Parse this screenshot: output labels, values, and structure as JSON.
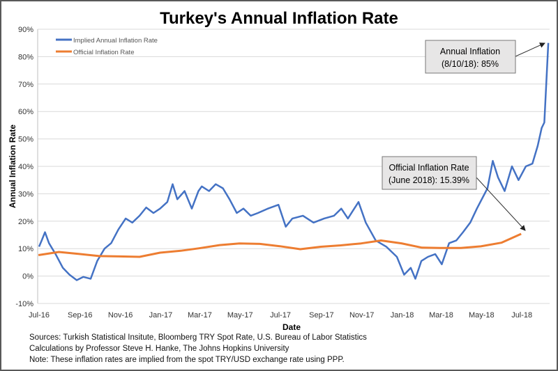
{
  "chart_data": {
    "type": "line",
    "title": "Turkey's Annual Inflation Rate",
    "xlabel": "Date",
    "ylabel": "Annual Inflation Rate",
    "ylim": [
      -10,
      90
    ],
    "xlim": [
      "2016-07-01",
      "2018-08-12"
    ],
    "yticks": [
      "-10%",
      "0%",
      "10%",
      "20%",
      "30%",
      "40%",
      "50%",
      "60%",
      "70%",
      "80%",
      "90%"
    ],
    "xticks": [
      {
        "date": "2016-07-01",
        "label": "Jul-16"
      },
      {
        "date": "2016-09-01",
        "label": "Sep-16"
      },
      {
        "date": "2016-11-01",
        "label": "Nov-16"
      },
      {
        "date": "2017-01-01",
        "label": "Jan-17"
      },
      {
        "date": "2017-03-01",
        "label": "Mar-17"
      },
      {
        "date": "2017-05-01",
        "label": "May-17"
      },
      {
        "date": "2017-07-01",
        "label": "Jul-17"
      },
      {
        "date": "2017-09-01",
        "label": "Sep-17"
      },
      {
        "date": "2017-11-01",
        "label": "Nov-17"
      },
      {
        "date": "2018-01-01",
        "label": "Jan-18"
      },
      {
        "date": "2018-03-01",
        "label": "Mar-18"
      },
      {
        "date": "2018-05-01",
        "label": "May-18"
      },
      {
        "date": "2018-07-01",
        "label": "Jul-18"
      }
    ],
    "grid": true,
    "legend_position": "top-left",
    "series": [
      {
        "name": "Implied Annual Inflation Rate",
        "color": "#4472c4",
        "points": [
          [
            "2016-07-01",
            10.7
          ],
          [
            "2016-07-05",
            13
          ],
          [
            "2016-07-10",
            16
          ],
          [
            "2016-07-16",
            12
          ],
          [
            "2016-07-26",
            8
          ],
          [
            "2016-08-06",
            3
          ],
          [
            "2016-08-16",
            0.5
          ],
          [
            "2016-08-27",
            -1.5
          ],
          [
            "2016-09-06",
            -0.3
          ],
          [
            "2016-09-17",
            -1
          ],
          [
            "2016-09-27",
            5.5
          ],
          [
            "2016-10-08",
            10
          ],
          [
            "2016-10-18",
            12
          ],
          [
            "2016-10-29",
            17
          ],
          [
            "2016-11-09",
            21
          ],
          [
            "2016-11-19",
            19.5
          ],
          [
            "2016-11-30",
            22
          ],
          [
            "2016-12-10",
            25
          ],
          [
            "2016-12-21",
            23
          ],
          [
            "2016-12-31",
            24.6
          ],
          [
            "2017-01-11",
            27
          ],
          [
            "2017-01-19",
            33.5
          ],
          [
            "2017-01-26",
            28
          ],
          [
            "2017-02-06",
            31
          ],
          [
            "2017-02-17",
            24.6
          ],
          [
            "2017-02-27",
            31
          ],
          [
            "2017-03-04",
            32.7
          ],
          [
            "2017-03-15",
            31
          ],
          [
            "2017-03-25",
            33.5
          ],
          [
            "2017-04-05",
            32
          ],
          [
            "2017-04-15",
            28
          ],
          [
            "2017-04-26",
            23
          ],
          [
            "2017-05-06",
            24.6
          ],
          [
            "2017-05-17",
            22
          ],
          [
            "2017-05-28",
            23
          ],
          [
            "2017-06-12",
            24.6
          ],
          [
            "2017-06-28",
            26
          ],
          [
            "2017-07-09",
            18
          ],
          [
            "2017-07-19",
            21
          ],
          [
            "2017-08-04",
            22
          ],
          [
            "2017-08-20",
            19.5
          ],
          [
            "2017-09-05",
            21
          ],
          [
            "2017-09-20",
            22
          ],
          [
            "2017-10-01",
            24.6
          ],
          [
            "2017-10-11",
            21
          ],
          [
            "2017-10-27",
            27
          ],
          [
            "2017-11-07",
            19.5
          ],
          [
            "2017-11-22",
            13
          ],
          [
            "2017-12-08",
            10.7
          ],
          [
            "2017-12-24",
            7
          ],
          [
            "2018-01-04",
            0.5
          ],
          [
            "2018-01-14",
            3
          ],
          [
            "2018-01-21",
            -1
          ],
          [
            "2018-01-30",
            5.5
          ],
          [
            "2018-02-09",
            7
          ],
          [
            "2018-02-20",
            8
          ],
          [
            "2018-03-02",
            4.3
          ],
          [
            "2018-03-13",
            12
          ],
          [
            "2018-03-24",
            13
          ],
          [
            "2018-04-03",
            16
          ],
          [
            "2018-04-14",
            19.5
          ],
          [
            "2018-04-24",
            24.6
          ],
          [
            "2018-05-10",
            32
          ],
          [
            "2018-05-18",
            42
          ],
          [
            "2018-05-26",
            36
          ],
          [
            "2018-06-05",
            31
          ],
          [
            "2018-06-16",
            40
          ],
          [
            "2018-06-26",
            35
          ],
          [
            "2018-07-07",
            40
          ],
          [
            "2018-07-17",
            41
          ],
          [
            "2018-07-25",
            47.5
          ],
          [
            "2018-07-31",
            54
          ],
          [
            "2018-08-04",
            56
          ],
          [
            "2018-08-10",
            85
          ]
        ]
      },
      {
        "name": "Official Inflation Rate",
        "color": "#ed7d31",
        "points": [
          [
            "2016-06-30",
            7.64
          ],
          [
            "2016-07-31",
            8.79
          ],
          [
            "2016-08-31",
            8.05
          ],
          [
            "2016-09-30",
            7.28
          ],
          [
            "2016-10-31",
            7.16
          ],
          [
            "2016-11-30",
            7.0
          ],
          [
            "2016-12-31",
            8.53
          ],
          [
            "2017-01-31",
            9.22
          ],
          [
            "2017-02-28",
            10.13
          ],
          [
            "2017-03-31",
            11.29
          ],
          [
            "2017-04-30",
            11.87
          ],
          [
            "2017-05-31",
            11.72
          ],
          [
            "2017-06-30",
            10.9
          ],
          [
            "2017-07-31",
            9.79
          ],
          [
            "2017-08-31",
            10.68
          ],
          [
            "2017-09-30",
            11.2
          ],
          [
            "2017-10-31",
            11.9
          ],
          [
            "2017-11-30",
            12.98
          ],
          [
            "2017-12-31",
            11.92
          ],
          [
            "2018-01-31",
            10.35
          ],
          [
            "2018-02-28",
            10.26
          ],
          [
            "2018-03-31",
            10.23
          ],
          [
            "2018-04-30",
            10.85
          ],
          [
            "2018-05-31",
            12.15
          ],
          [
            "2018-06-30",
            15.39
          ]
        ]
      }
    ],
    "annotations": [
      {
        "line1": "Annual Inflation",
        "line2": "(8/10/18): 85%"
      },
      {
        "line1": "Official Inflation Rate",
        "line2": "(June 2018): 15.39%"
      }
    ],
    "notes": [
      "Sources: Turkish Statistical Insitute, Bloomberg TRY Spot Rate, U.S. Bureau of Labor Statistics",
      "Calculations by Professor Steve H. Hanke, The Johns Hopkins University",
      "Note: These inflation rates are implied from the spot TRY/USD exchange rate using PPP."
    ],
    "frame_color": "#595959",
    "annotation_fill": "#e7e6e6"
  }
}
